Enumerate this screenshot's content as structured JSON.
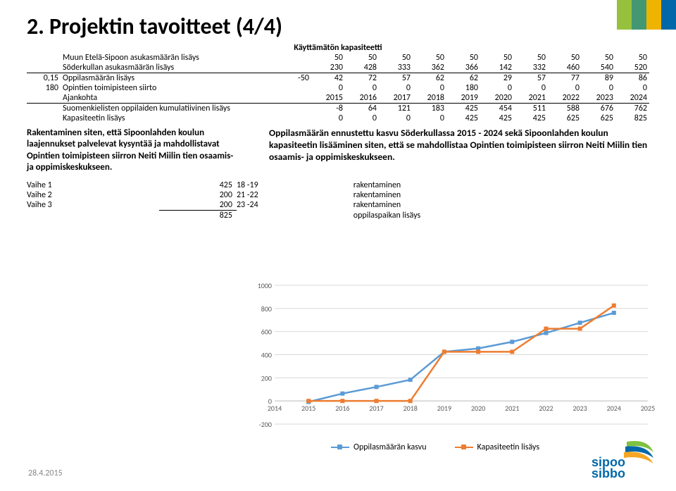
{
  "title": "2. Projektin tavoitteet (4/4)",
  "subtitle": "Käyttämätön kapasiteetti",
  "table": {
    "rows": [
      {
        "pre": "",
        "label": "Muun Etelä-Sipoon asukasmäärän lisäys",
        "v": [
          "50",
          "50",
          "50",
          "50",
          "50",
          "50",
          "50",
          "50",
          "50",
          "50"
        ]
      },
      {
        "pre": "",
        "label": "Söderkullan asukasmäärän lisäys",
        "v": [
          "230",
          "428",
          "333",
          "362",
          "366",
          "142",
          "332",
          "460",
          "540",
          "520"
        ]
      },
      {
        "pre": "0,15",
        "label": "Oppilasmäärän lisäys",
        "v": [
          "-50",
          "42",
          "72",
          "57",
          "62",
          "62",
          "29",
          "57",
          "77",
          "89",
          "86"
        ],
        "wide": true
      },
      {
        "pre": "180",
        "label": "Opintien toimipisteen siirto",
        "v": [
          "0",
          "0",
          "0",
          "0",
          "180",
          "0",
          "0",
          "0",
          "0",
          "0"
        ]
      },
      {
        "pre": "",
        "label": "Ajankohta",
        "v": [
          "2015",
          "2016",
          "2017",
          "2018",
          "2019",
          "2020",
          "2021",
          "2022",
          "2023",
          "2024"
        ]
      },
      {
        "pre": "",
        "label": "Suomenkielisten oppilaiden kumulatiivinen lisäys",
        "v": [
          "-8",
          "64",
          "121",
          "183",
          "425",
          "454",
          "511",
          "588",
          "676",
          "762"
        ],
        "wide": true
      },
      {
        "pre": "",
        "label": "Kapasiteetin lisäys",
        "v": [
          "0",
          "0",
          "0",
          "0",
          "425",
          "425",
          "425",
          "625",
          "625",
          "825"
        ]
      }
    ]
  },
  "note_left": "Rakentaminen siten, että Sipoonlahden koulun laajennukset palvelevat kysyntää ja mahdollistavat Opintien toimipisteen siirron Neiti Miilin tien osaamis- ja oppimiskeskukseen.",
  "note_right": "Oppilasmäärän ennustettu kasvu Söderkullassa 2015 - 2024 sekä Sipoonlahden koulun kapasiteetin lisääminen siten, että se mahdollistaa Opintien toimipisteen siirron Neiti Miilin tien osaamis- ja oppimiskeskukseen.",
  "phases": [
    {
      "name": "Vaihe 1",
      "n": "425",
      "y": "18 -19",
      "t": "rakentaminen"
    },
    {
      "name": "Vaihe 2",
      "n": "200",
      "y": "21 -22",
      "t": "rakentaminen"
    },
    {
      "name": "Vaihe 3",
      "n": "200",
      "y": "23 -24",
      "t": "rakentaminen"
    },
    {
      "name": "",
      "n": "825",
      "y": "",
      "t": "oppilaspaikan lisäys"
    }
  ],
  "chart": {
    "xlabels": [
      "2014",
      "2015",
      "2016",
      "2017",
      "2018",
      "2019",
      "2020",
      "2021",
      "2022",
      "2023",
      "2024",
      "2025"
    ],
    "yticks": [
      -200,
      0,
      200,
      400,
      600,
      800,
      1000
    ],
    "ymin": -200,
    "ymax": 1000,
    "series": [
      {
        "name": "Oppilasmäärän kasvu",
        "color": "#5b9bd5",
        "pts": [
          [
            2015,
            -8
          ],
          [
            2016,
            64
          ],
          [
            2017,
            121
          ],
          [
            2018,
            183
          ],
          [
            2019,
            425
          ],
          [
            2020,
            454
          ],
          [
            2021,
            511
          ],
          [
            2022,
            588
          ],
          [
            2023,
            676
          ],
          [
            2024,
            762
          ]
        ]
      },
      {
        "name": "Kapasiteetin lisäys",
        "color": "#ed7d31",
        "pts": [
          [
            2015,
            0
          ],
          [
            2016,
            0
          ],
          [
            2017,
            0
          ],
          [
            2018,
            0
          ],
          [
            2019,
            425
          ],
          [
            2020,
            425
          ],
          [
            2021,
            425
          ],
          [
            2022,
            625
          ],
          [
            2023,
            625
          ],
          [
            2024,
            825
          ]
        ]
      }
    ],
    "grid": "#d9d9d9",
    "axis": "#bfbfbf"
  },
  "legend": [
    "Oppilasmäärän kasvu",
    "Kapasiteetin lisäys"
  ],
  "footer": "28.4.2015",
  "stripe": [
    "#96c13d",
    "#439873",
    "#efb400",
    "#0068a8"
  ],
  "logo": {
    "text1": "sipoo",
    "text2": "sibbo",
    "blue": "#0068a8",
    "green": "#7fc241",
    "orange": "#f5a623"
  }
}
